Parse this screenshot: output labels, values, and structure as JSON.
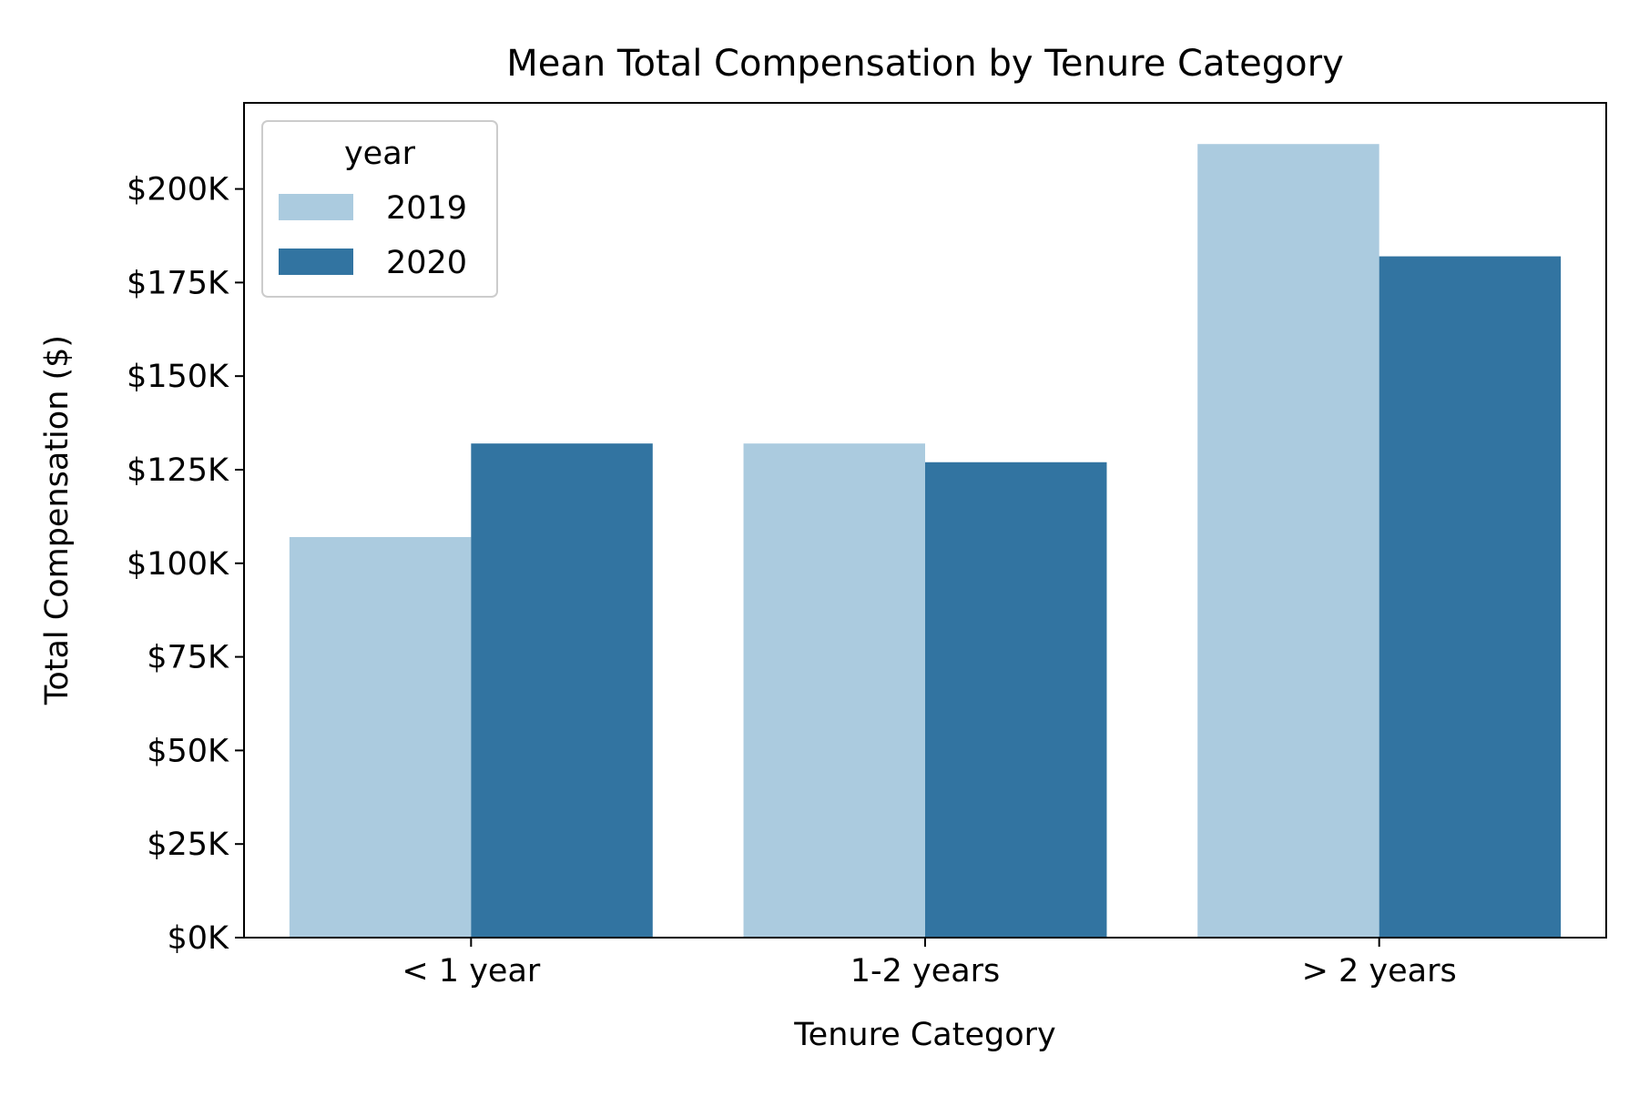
{
  "chart_data": {
    "type": "bar",
    "title": "Mean Total Compensation by Tenure Category",
    "xlabel": "Tenure Category",
    "ylabel": "Total Compensation ($)",
    "categories": [
      "< 1 year",
      "1-2 years",
      "> 2 years"
    ],
    "series": [
      {
        "name": "2019",
        "color": "#abcbdf",
        "values": [
          107000,
          132000,
          212000
        ]
      },
      {
        "name": "2020",
        "color": "#3274a1",
        "values": [
          132000,
          127000,
          182000
        ]
      }
    ],
    "ylim": [
      0,
      223000
    ],
    "yticks": [
      0,
      25000,
      50000,
      75000,
      100000,
      125000,
      150000,
      175000,
      200000
    ],
    "ytick_labels": [
      "$0K",
      "$25K",
      "$50K",
      "$75K",
      "$100K",
      "$125K",
      "$150K",
      "$175K",
      "$200K"
    ],
    "legend": {
      "title": "year",
      "placement": "top-left"
    },
    "grid": false
  }
}
